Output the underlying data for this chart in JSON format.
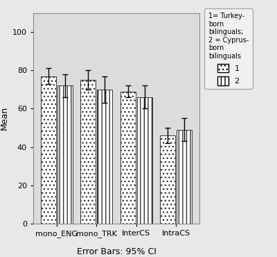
{
  "categories": [
    "mono_ENG",
    "mono_TRK",
    "InterCS",
    "IntraCS"
  ],
  "group1_means": [
    77,
    75,
    69,
    46
  ],
  "group2_means": [
    72,
    70,
    66,
    49
  ],
  "group1_errors": [
    4,
    5,
    3,
    4
  ],
  "group2_errors": [
    6,
    7,
    6,
    6
  ],
  "group1_label": "1",
  "group2_label": "2",
  "ylabel": "Mean",
  "xlabel": "Error Bars: 95% CI",
  "ylim": [
    0,
    110
  ],
  "yticks": [
    0,
    20,
    40,
    60,
    80,
    100
  ],
  "legend_title": "1= Turkey-\nborn\nbilinguals;\n2 = Cyprus-\nborn\nbilinguals",
  "outer_bg_color": "#e8e8e8",
  "plot_bg_color": "#dcdcdc",
  "bar_width": 0.38,
  "hatch1": "...",
  "hatch2": "|||",
  "bar_edgecolor": "#333333",
  "axis_fontsize": 9,
  "tick_fontsize": 8,
  "legend_fontsize": 8
}
